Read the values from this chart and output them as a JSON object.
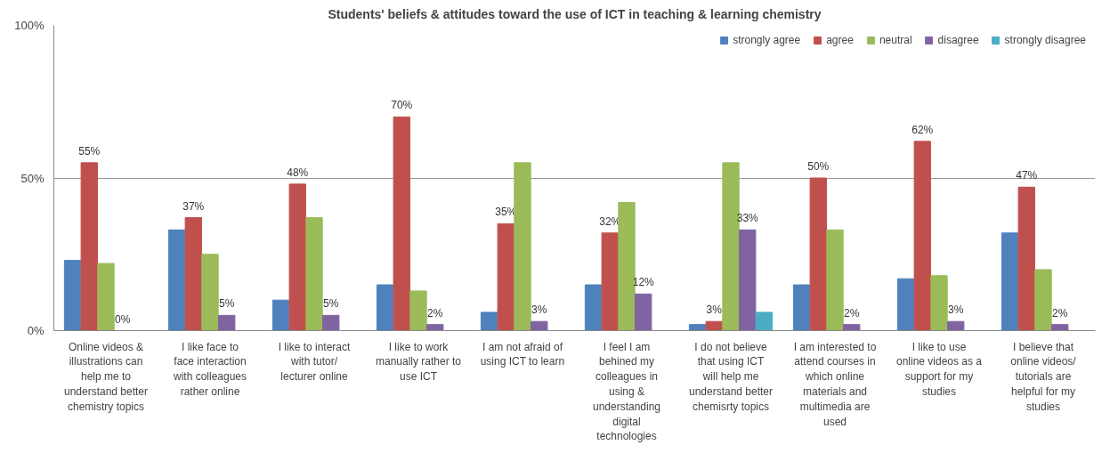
{
  "chart_data": {
    "type": "bar",
    "title": "Students' beliefs & attitudes toward the use of ICT in teaching & learning chemistry",
    "categories": [
      "Online videos & illustrations can help me to understand better chemistry topics",
      "I like face to face interaction with colleagues rather online",
      "I like to interact with tutor/ lecturer online",
      "I like to work manually rather to use ICT",
      "I am not afraid of using ICT to learn",
      "I feel I am behined my colleagues in using & understanding digital technologies",
      "I do not believe that using ICT will help me understand better chemisrty topics",
      "I am interested to attend courses in which online materials and multimedia are used",
      "I like to use online videos as a support for my studies",
      "I believe that online videos/ tutorials are helpful for my studies"
    ],
    "series": [
      {
        "name": "strongly agree",
        "color": "#4f81bd",
        "values": [
          23,
          33,
          10,
          15,
          6,
          15,
          2,
          15,
          17,
          32
        ]
      },
      {
        "name": "agree",
        "color": "#c0504d",
        "values": [
          55,
          37,
          48,
          70,
          35,
          32,
          3,
          50,
          62,
          47
        ],
        "value_labels": [
          "55%",
          "37%",
          "48%",
          "70%",
          "35%",
          "32%",
          "3%",
          "50%",
          "62%",
          "47%"
        ]
      },
      {
        "name": "neutral",
        "color": "#9bbb59",
        "values": [
          22,
          25,
          37,
          13,
          55,
          42,
          55,
          33,
          18,
          20
        ]
      },
      {
        "name": "disagree",
        "color": "#8064a2",
        "values": [
          0,
          5,
          5,
          2,
          3,
          12,
          33,
          2,
          3,
          2
        ],
        "value_labels": [
          "0%",
          "5%",
          "5%",
          "2%",
          "3%",
          "12%",
          "33%",
          "2%",
          "3%",
          "2%"
        ]
      },
      {
        "name": "strongly disagree",
        "color": "#4bacc6",
        "values": [
          null,
          null,
          null,
          null,
          null,
          null,
          6,
          null,
          null,
          null
        ]
      }
    ],
    "ylim": [
      0,
      100
    ],
    "yticks": [
      {
        "value": 0,
        "label": "0%"
      },
      {
        "value": 50,
        "label": "50%"
      },
      {
        "value": 100,
        "label": "100%"
      }
    ],
    "grid": "y",
    "legend": "top right"
  }
}
